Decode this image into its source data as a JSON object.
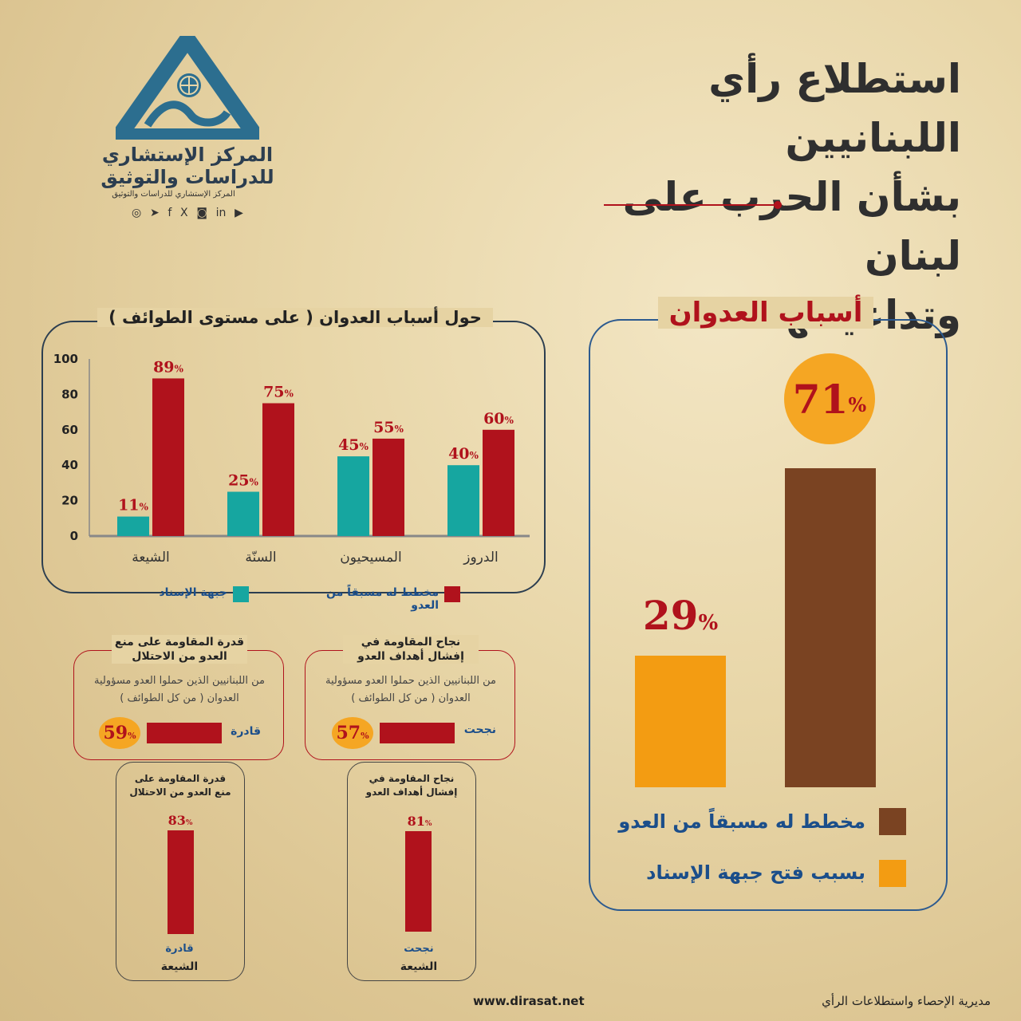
{
  "header": {
    "title_lines": [
      "استطلاع رأي اللبنانيين",
      "بشأن الحرب على لبنان",
      "وتداعياتها"
    ]
  },
  "logo": {
    "name": "المركز الإستشاري للدراسات والتوثيق",
    "subtitle": "المركز الإستشاري للدراسات والتوثيق",
    "socials": [
      "whatsapp-icon",
      "telegram-icon",
      "facebook-icon",
      "x-icon",
      "instagram-icon",
      "linkedin-icon",
      "youtube-icon"
    ],
    "socials_glyphs": [
      "◎",
      "➤",
      "f",
      "X",
      "◙",
      "in",
      "▶"
    ]
  },
  "colors": {
    "red": "#b0121c",
    "teal": "#16a6a0",
    "brown": "#7a4322",
    "orange": "#f39c12",
    "navy": "#2c3e50"
  },
  "sects_chart": {
    "title": "حول أسباب العدوان ( على مستوى الطوائف )",
    "legend_red": "مخطط له مسبقاً من العدو",
    "legend_teal": "جبهة الإسناد",
    "y_ticks": [
      "100",
      "80",
      "60",
      "40",
      "20",
      "0"
    ],
    "pct": "%"
  },
  "causes_chart": {
    "title": "أسباب العدوان",
    "big_value": "71",
    "small_value": "29",
    "pct": "%",
    "legend_brown": "مخطط له مسبقاً من العدو",
    "legend_orange": "بسبب فتح جبهة الإسناد"
  },
  "boxes": {
    "success_title": "نجاح المقاومة في إفشال أهداف العدو",
    "success_desc": "من اللبنانيين الذين حملوا العدو مسؤولية العدوان ( من كل الطوائف )",
    "success_label": "نجحت",
    "success_value": "57",
    "ability_title": "قدرة المقاومة على منع العدو من الاحتلال",
    "ability_desc": "من اللبنانيين الذين حملوا العدو مسؤولية العدوان ( من كل الطوائف )",
    "ability_label": "قادرة",
    "ability_value": "59",
    "shia_success_title": "نجاح المقاومة في إفشال أهداف العدو",
    "shia_success_value": "81",
    "shia_success_label": "نجحت",
    "shia_ability_title": "قدرة المقاومة على منع العدو من الاحتلال",
    "shia_ability_value": "83",
    "shia_ability_label": "قادرة",
    "shia_label": "الشيعة",
    "pct": "%"
  },
  "footer": {
    "website": "www.dirasat.net",
    "department": "مديرية الإحصاء واستطلاعات الرأي"
  },
  "chart_data": [
    {
      "type": "bar",
      "title": "حول أسباب العدوان ( على مستوى الطوائف )",
      "categories": [
        "الشيعة",
        "السنّة",
        "المسيحيون",
        "الدروز"
      ],
      "series": [
        {
          "name": "جبهة الإسناد",
          "values": [
            11,
            25,
            45,
            40
          ]
        },
        {
          "name": "مخطط له مسبقاً من العدو",
          "values": [
            89,
            75,
            55,
            60
          ]
        }
      ],
      "ylim": [
        0,
        100
      ],
      "legend": "bottom"
    },
    {
      "type": "bar",
      "title": "أسباب العدوان",
      "categories": [
        "بسبب فتح جبهة الإسناد",
        "مخطط له مسبقاً من العدو"
      ],
      "values": [
        29,
        71
      ],
      "legend": "bottom"
    },
    {
      "type": "bar",
      "title": "نجاح المقاومة في إفشال أهداف العدو",
      "categories": [
        "الشيعة"
      ],
      "values": [
        81
      ]
    },
    {
      "type": "bar",
      "title": "قدرة المقاومة على منع العدو من الاحتلال",
      "categories": [
        "الشيعة"
      ],
      "values": [
        83
      ]
    }
  ]
}
